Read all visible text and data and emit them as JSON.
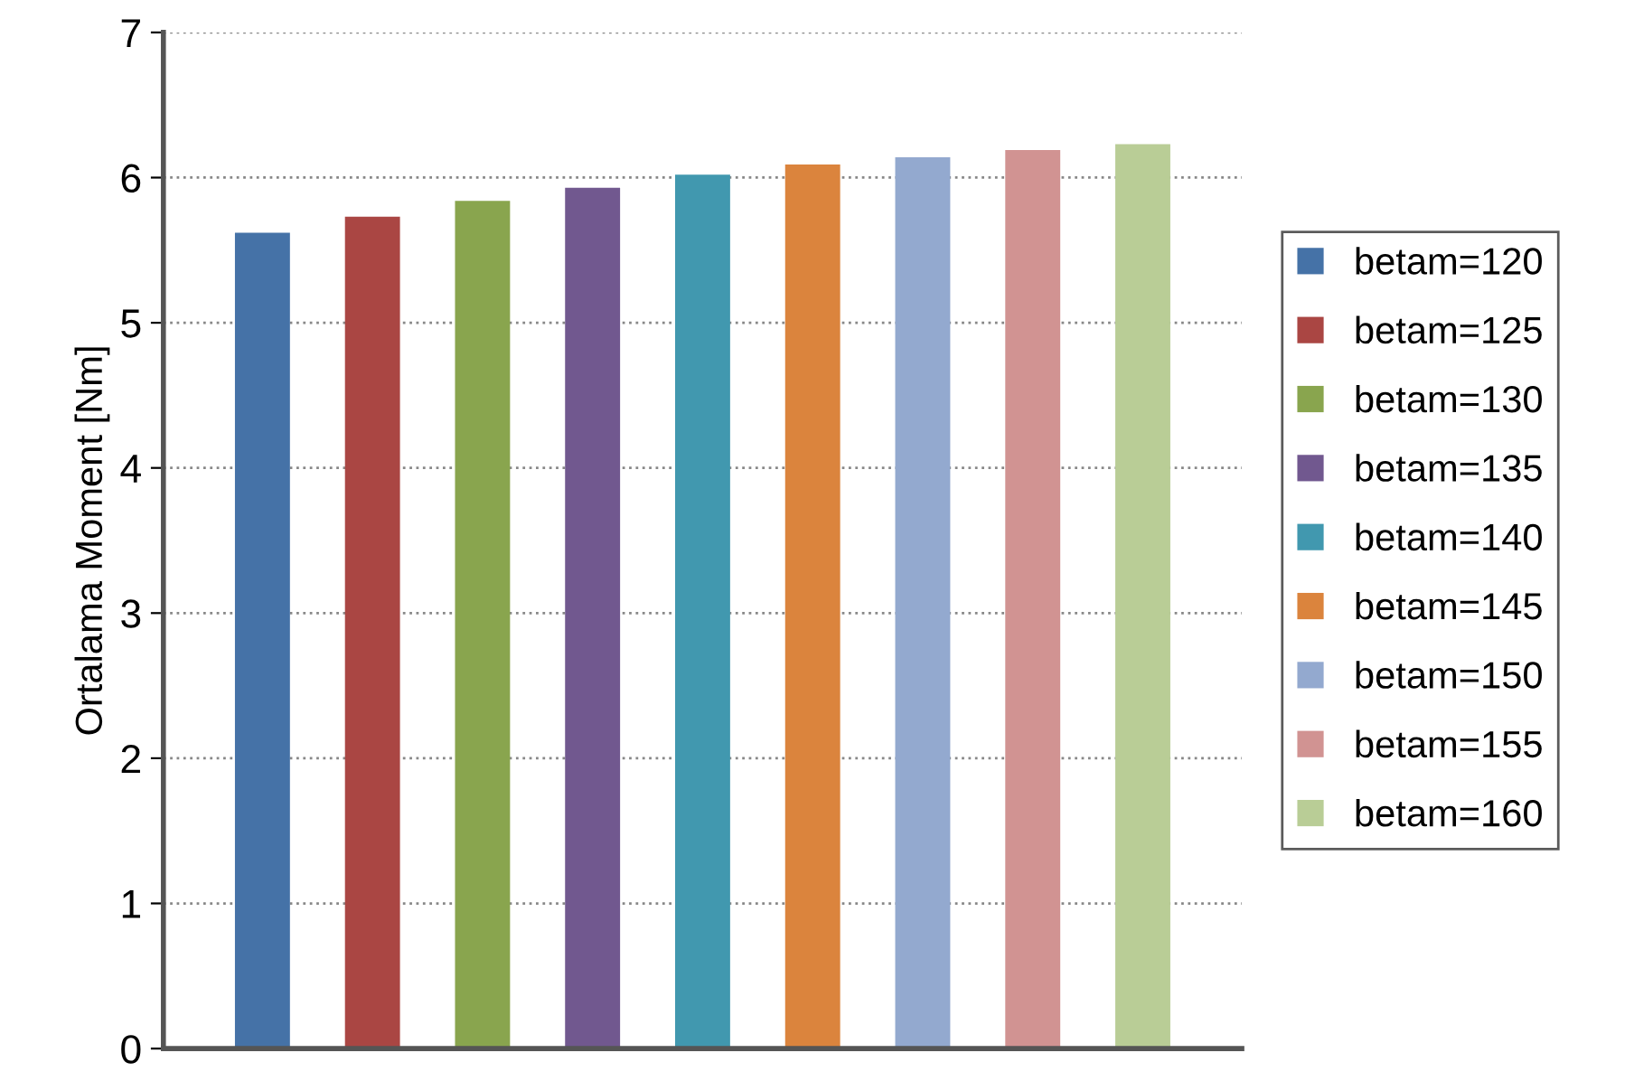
{
  "chart_data": {
    "type": "bar",
    "ylabel": "Ortalama Moment [Nm]",
    "categories": [
      null
    ],
    "ylim": [
      0,
      7
    ],
    "yticks": [
      0,
      1,
      2,
      3,
      4,
      5,
      6,
      7
    ],
    "grid": "y",
    "legend": "right",
    "series": [
      {
        "name": "betam=120",
        "color": "#4572a7",
        "values": [
          5.62
        ]
      },
      {
        "name": "betam=125",
        "color": "#aa4643",
        "values": [
          5.73
        ]
      },
      {
        "name": "betam=130",
        "color": "#89a54e",
        "values": [
          5.84
        ]
      },
      {
        "name": "betam=135",
        "color": "#71588f",
        "values": [
          5.93
        ]
      },
      {
        "name": "betam=140",
        "color": "#4198af",
        "values": [
          6.02
        ]
      },
      {
        "name": "betam=145",
        "color": "#db843d",
        "values": [
          6.09
        ]
      },
      {
        "name": "betam=150",
        "color": "#93a9cf",
        "values": [
          6.14
        ]
      },
      {
        "name": "betam=155",
        "color": "#d19392",
        "values": [
          6.19
        ]
      },
      {
        "name": "betam=160",
        "color": "#b9cd96",
        "values": [
          6.23
        ]
      }
    ]
  }
}
